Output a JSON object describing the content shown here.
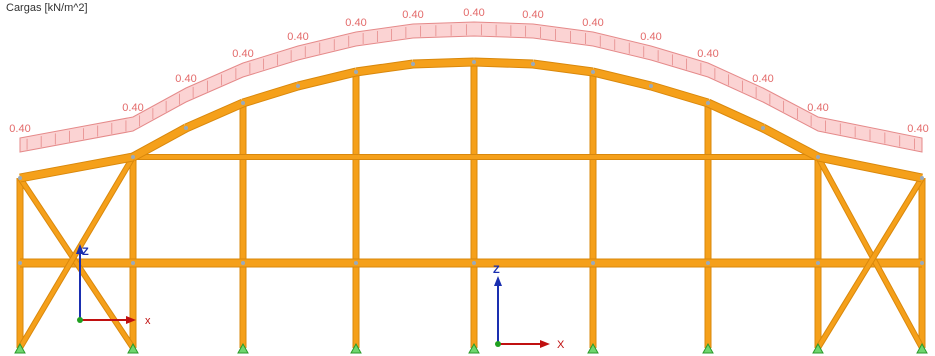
{
  "header": {
    "title": "Cargas [kN/m^2]"
  },
  "load_labels": [
    "0.40",
    "0.40",
    "0.40",
    "0.40",
    "0.40",
    "0.40",
    "0.40",
    "0.40",
    "0.40",
    "0.40",
    "0.40",
    "0.40",
    "0.40",
    "0.40",
    "0.40"
  ],
  "axes": [
    {
      "z": "Z",
      "x": "x"
    },
    {
      "z": "Z",
      "x": "X"
    }
  ]
}
